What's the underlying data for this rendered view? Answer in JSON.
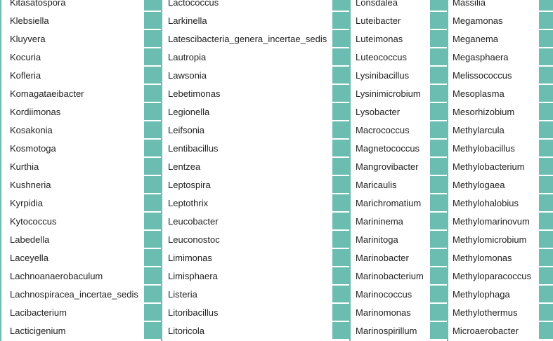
{
  "colors": {
    "swatch": "#6cbdb1",
    "background": "#ffffff",
    "text": "#222222"
  },
  "columns": [
    [
      "Kitasatospora",
      "Klebsiella",
      "Kluyvera",
      "Kocuria",
      "Kofleria",
      "Komagataeibacter",
      "Kordiimonas",
      "Kosakonia",
      "Kosmotoga",
      "Kurthia",
      "Kushneria",
      "Kyrpidia",
      "Kytococcus",
      "Labedella",
      "Laceyella",
      "Lachnoanaerobaculum",
      "Lachnospiracea_incertae_sedis",
      "Lacibacterium",
      "Lacticigenium"
    ],
    [
      "Lactococcus",
      "Larkinella",
      "Latescibacteria_genera_incertae_sedis",
      "Lautropia",
      "Lawsonia",
      "Lebetimonas",
      "Legionella",
      "Leifsonia",
      "Lentibacillus",
      "Lentzea",
      "Leptospira",
      "Leptothrix",
      "Leucobacter",
      "Leuconostoc",
      "Limimonas",
      "Limisphaera",
      "Listeria",
      "Litoribacillus",
      "Litoricola"
    ],
    [
      "Lonsdalea",
      "Luteibacter",
      "Luteimonas",
      "Luteococcus",
      "Lysinibacillus",
      "Lysinimicrobium",
      "Lysobacter",
      "Macrococcus",
      "Magnetococcus",
      "Mangrovibacter",
      "Maricaulis",
      "Marichromatium",
      "Marininema",
      "Marinitoga",
      "Marinobacter",
      "Marinobacterium",
      "Marinococcus",
      "Marinomonas",
      "Marinospirillum"
    ],
    [
      "Massilia",
      "Megamonas",
      "Meganema",
      "Megasphaera",
      "Melissococcus",
      "Mesoplasma",
      "Mesorhizobium",
      "Methylarcula",
      "Methylobacillus",
      "Methylobacterium",
      "Methylogaea",
      "Methylohalobius",
      "Methylomarinovum",
      "Methylomicrobium",
      "Methylomonas",
      "Methyloparacoccus",
      "Methylophaga",
      "Methylothermus",
      "Microaerobacter"
    ]
  ]
}
